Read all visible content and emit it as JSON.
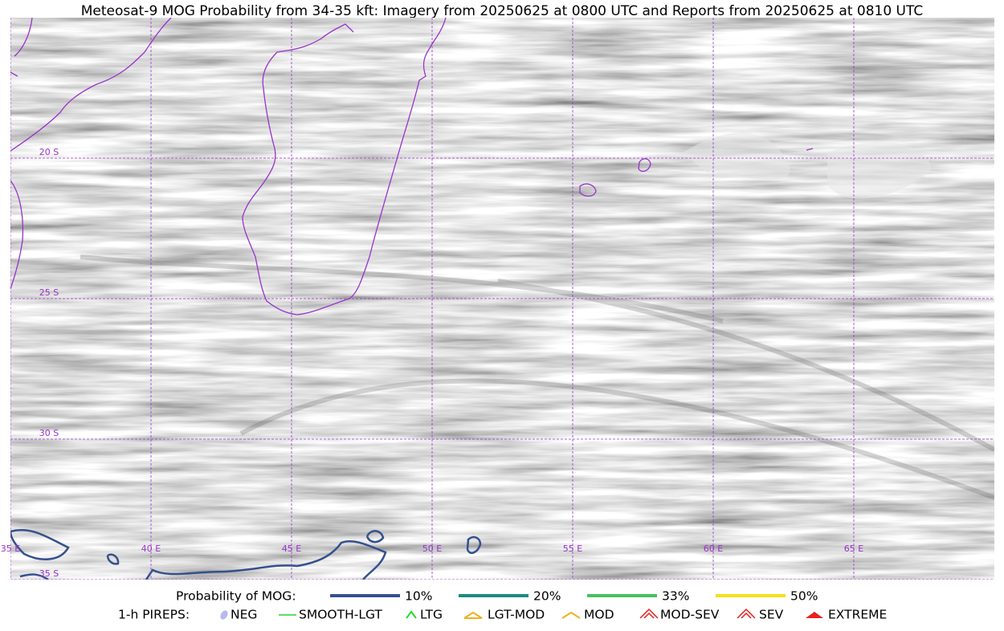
{
  "title": "Meteosat-9 MOG Probability from 34-35 kft: Imagery from 20250625 at 0800 UTC and Reports from 20250625 at 0810 UTC",
  "grid": {
    "lon": [
      {
        "value": 35,
        "label": "35 E"
      },
      {
        "value": 40,
        "label": "40 E"
      },
      {
        "value": 45,
        "label": "45 E"
      },
      {
        "value": 50,
        "label": "50 E"
      },
      {
        "value": 55,
        "label": "55 E"
      },
      {
        "value": 60,
        "label": "60 E"
      },
      {
        "value": 65,
        "label": "65 E"
      }
    ],
    "lat": [
      {
        "value": 20,
        "label": "20 S"
      },
      {
        "value": 25,
        "label": "25 S"
      },
      {
        "value": 30,
        "label": "30 S"
      },
      {
        "value": 35,
        "label": "35 S"
      }
    ]
  },
  "legend": {
    "probability_label": "Probability of MOG:",
    "probability_items": [
      {
        "label": "10%",
        "color": "#34508f"
      },
      {
        "label": "20%",
        "color": "#1b8a80"
      },
      {
        "label": "33%",
        "color": "#47c160"
      },
      {
        "label": "50%",
        "color": "#f7e015"
      }
    ],
    "pireps_label": "1-h PIREPS:",
    "pirep_items": [
      {
        "label": "NEG",
        "color": "#b8b8f0"
      },
      {
        "label": "SMOOTH-LGT",
        "color": "#33cc33"
      },
      {
        "label": "LTG",
        "color": "#22dd22"
      },
      {
        "label": "LGT-MOD",
        "color": "#f0b020"
      },
      {
        "label": "MOD",
        "color": "#f0b020"
      },
      {
        "label": "MOD-SEV",
        "color": "#e82020"
      },
      {
        "label": "SEV",
        "color": "#e82020"
      },
      {
        "label": "EXTREME",
        "color": "#e82020"
      }
    ]
  }
}
